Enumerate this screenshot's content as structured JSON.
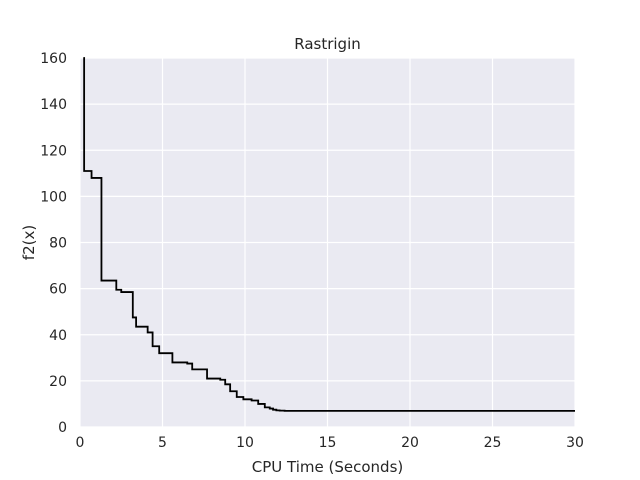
{
  "chart_data": {
    "type": "line",
    "title": "Rastrigin",
    "xlabel": "CPU Time (Seconds)",
    "ylabel": "f2(x)",
    "xlim": [
      0,
      30
    ],
    "ylim": [
      0,
      160
    ],
    "xticks": [
      0,
      5,
      10,
      15,
      20,
      25,
      30
    ],
    "yticks": [
      0,
      20,
      40,
      60,
      80,
      100,
      120,
      140,
      160
    ],
    "grid": true,
    "step": "post",
    "colors": {
      "background": "#eaeaf2",
      "grid": "#ffffff",
      "line": "#000000"
    },
    "series": [
      {
        "x": [
          0.2,
          0.25,
          0.7,
          1.3,
          2.2,
          2.5,
          3.2,
          3.4,
          4.1,
          4.4,
          4.8,
          5.6,
          6.5,
          6.8,
          7.7,
          8.5,
          8.8,
          9.1,
          9.5,
          9.9,
          10.4,
          10.8,
          11.2,
          11.5,
          11.7,
          11.9,
          12.1,
          12.4,
          30
        ],
        "y": [
          160,
          111,
          108,
          63.5,
          59.5,
          58.5,
          47.5,
          43.5,
          41,
          35,
          32,
          28,
          27.5,
          25,
          21,
          20.5,
          18.5,
          15.5,
          13,
          12,
          11.5,
          10,
          8.5,
          8,
          7.5,
          7.2,
          7.1,
          7,
          7
        ]
      }
    ]
  }
}
